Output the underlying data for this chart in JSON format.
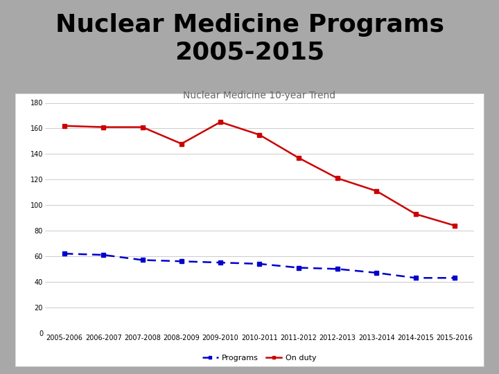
{
  "title_line1": "Nuclear Medicine Programs",
  "title_line2": "2005-2015",
  "subtitle": "Nuclear Medicine 10-year Trend",
  "categories": [
    "2005-2006",
    "2006-2007",
    "2007-2008",
    "2008-2009",
    "2009-2010",
    "2010-2011",
    "2011-2012",
    "2012-2013",
    "2013-2014",
    "2014-2015",
    "2015-2016"
  ],
  "programs": [
    62,
    61,
    57,
    56,
    55,
    54,
    51,
    50,
    47,
    43,
    43
  ],
  "on_duty": [
    162,
    161,
    161,
    148,
    165,
    155,
    137,
    121,
    111,
    93,
    84
  ],
  "programs_color": "#0000cc",
  "on_duty_color": "#cc0000",
  "title_color": "#000000",
  "title_fontsize": 26,
  "subtitle_fontsize": 10,
  "red_bar_color": "#cc0000",
  "bg_outer": "#a8a8a8",
  "bg_chart": "#ffffff",
  "bg_chart_border": "#cccccc",
  "ylim": [
    0,
    180
  ],
  "yticks": [
    0,
    20,
    40,
    60,
    80,
    100,
    120,
    140,
    160,
    180
  ],
  "grid_color": "#cccccc",
  "marker_size": 4,
  "tick_fontsize": 7,
  "legend_fontsize": 8
}
